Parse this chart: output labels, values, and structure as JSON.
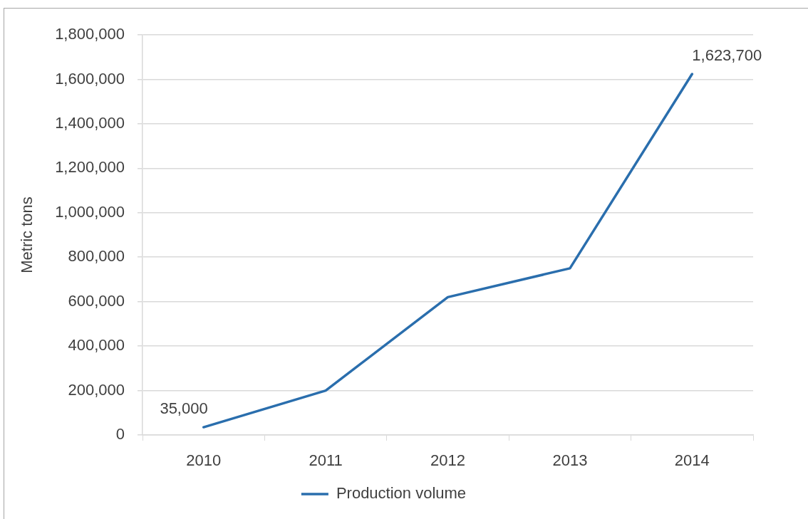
{
  "chart_data": {
    "type": "line",
    "ylabel": "Metric tons",
    "categories": [
      "2010",
      "2011",
      "2012",
      "2013",
      "2014"
    ],
    "series": [
      {
        "name": "Production volume",
        "color": "#2a6ead",
        "values": [
          35000,
          200000,
          620000,
          750000,
          1623700
        ],
        "value_labels": [
          "35,000",
          null,
          null,
          null,
          "1,623,700"
        ]
      }
    ],
    "ylim": [
      0,
      1800000
    ],
    "yticks": [
      {
        "value": 0,
        "label": "0"
      },
      {
        "value": 200000,
        "label": "200,000"
      },
      {
        "value": 400000,
        "label": "400,000"
      },
      {
        "value": 600000,
        "label": "600,000"
      },
      {
        "value": 800000,
        "label": "800,000"
      },
      {
        "value": 1000000,
        "label": "1,000,000"
      },
      {
        "value": 1200000,
        "label": "1,200,000"
      },
      {
        "value": 1400000,
        "label": "1,400,000"
      },
      {
        "value": 1600000,
        "label": "1,600,000"
      },
      {
        "value": 1800000,
        "label": "1,800,000"
      }
    ],
    "grid": "y",
    "legend": "bottom"
  }
}
